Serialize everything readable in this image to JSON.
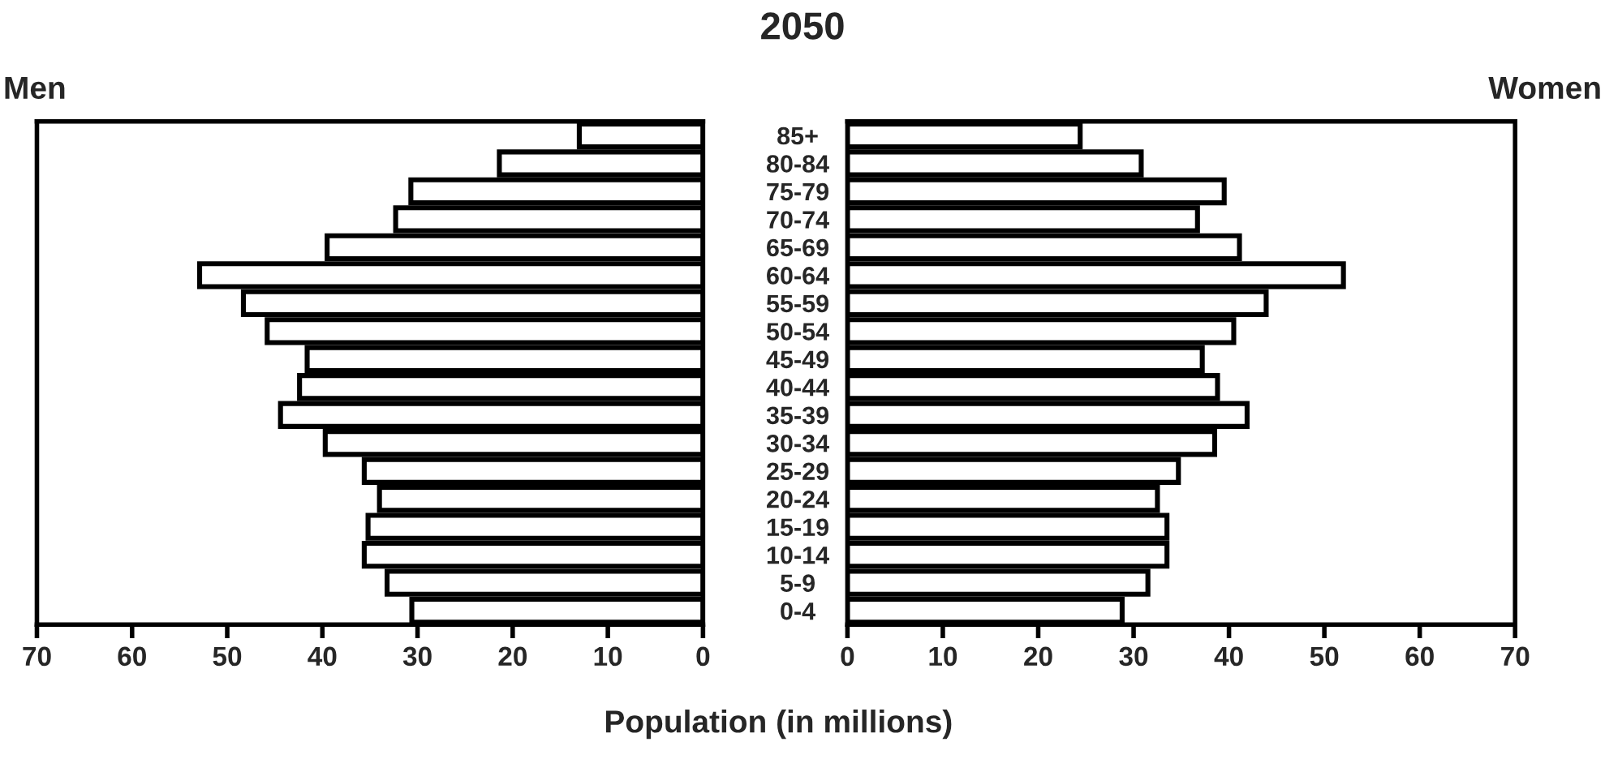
{
  "chart_data": [
    {
      "type": "bar",
      "orientation": "horizontal",
      "title": "2050",
      "subtitle": "Men",
      "xlabel": "Population (in millions)",
      "categories": [
        "85+",
        "80-84",
        "75-79",
        "70-74",
        "65-69",
        "60-64",
        "55-59",
        "50-54",
        "45-49",
        "40-44",
        "35-39",
        "30-34",
        "25-29",
        "20-24",
        "15-19",
        "10-14",
        "5-9",
        "0-4"
      ],
      "series": [
        {
          "color": "#ffffff",
          "values": [
            13.0,
            21.4,
            30.7,
            32.3,
            39.5,
            52.9,
            48.3,
            45.8,
            41.6,
            42.4,
            44.4,
            39.7,
            35.6,
            34.0,
            35.2,
            35.6,
            33.2,
            30.6
          ]
        }
      ],
      "xlim": [
        70,
        0
      ],
      "xticks": [
        70,
        60,
        50,
        40,
        30,
        20,
        10,
        0
      ],
      "grid": false
    },
    {
      "type": "bar",
      "orientation": "horizontal",
      "subtitle": "Women",
      "series": [
        {
          "color": "#ffffff",
          "values": [
            24.4,
            30.8,
            39.5,
            36.7,
            41.1,
            52.0,
            43.9,
            40.5,
            37.2,
            38.8,
            41.9,
            38.5,
            34.7,
            32.5,
            33.5,
            33.5,
            31.5,
            28.8
          ]
        }
      ],
      "xlim": [
        0,
        70
      ],
      "xticks": [
        0,
        10,
        20,
        30,
        40,
        50,
        60,
        70
      ],
      "grid": false,
      "tick_labels": "x"
    }
  ]
}
